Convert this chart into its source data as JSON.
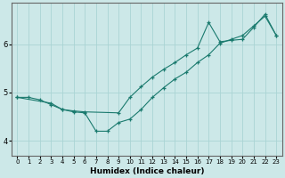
{
  "xlabel": "Humidex (Indice chaleur)",
  "xlim": [
    -0.5,
    23.5
  ],
  "ylim": [
    3.7,
    6.85
  ],
  "yticks": [
    4,
    5,
    6
  ],
  "xticks": [
    0,
    1,
    2,
    3,
    4,
    5,
    6,
    7,
    8,
    9,
    10,
    11,
    12,
    13,
    14,
    15,
    16,
    17,
    18,
    19,
    20,
    21,
    22,
    23
  ],
  "bg_color": "#cce8e8",
  "line_color": "#1a7a6e",
  "grid_color": "#aad4d4",
  "line1_x": [
    0,
    1,
    2,
    3,
    4,
    5,
    6,
    7,
    8,
    9,
    10,
    11,
    12,
    13,
    14,
    15,
    16,
    17,
    18,
    19,
    20,
    21,
    22,
    23
  ],
  "line1_y": [
    4.9,
    4.9,
    4.85,
    4.75,
    4.65,
    4.6,
    4.58,
    4.2,
    4.2,
    4.38,
    4.45,
    4.65,
    4.9,
    5.1,
    5.28,
    5.42,
    5.62,
    5.78,
    6.02,
    6.1,
    6.18,
    6.38,
    6.58,
    6.18
  ],
  "line2_x": [
    0,
    3,
    4,
    5,
    6,
    9,
    10,
    11,
    12,
    13,
    14,
    15,
    16,
    17,
    18,
    19,
    20,
    21,
    22,
    23
  ],
  "line2_y": [
    4.9,
    4.78,
    4.65,
    4.62,
    4.6,
    4.58,
    4.9,
    5.12,
    5.32,
    5.48,
    5.62,
    5.78,
    5.92,
    6.45,
    6.05,
    6.08,
    6.1,
    6.35,
    6.62,
    6.18
  ]
}
